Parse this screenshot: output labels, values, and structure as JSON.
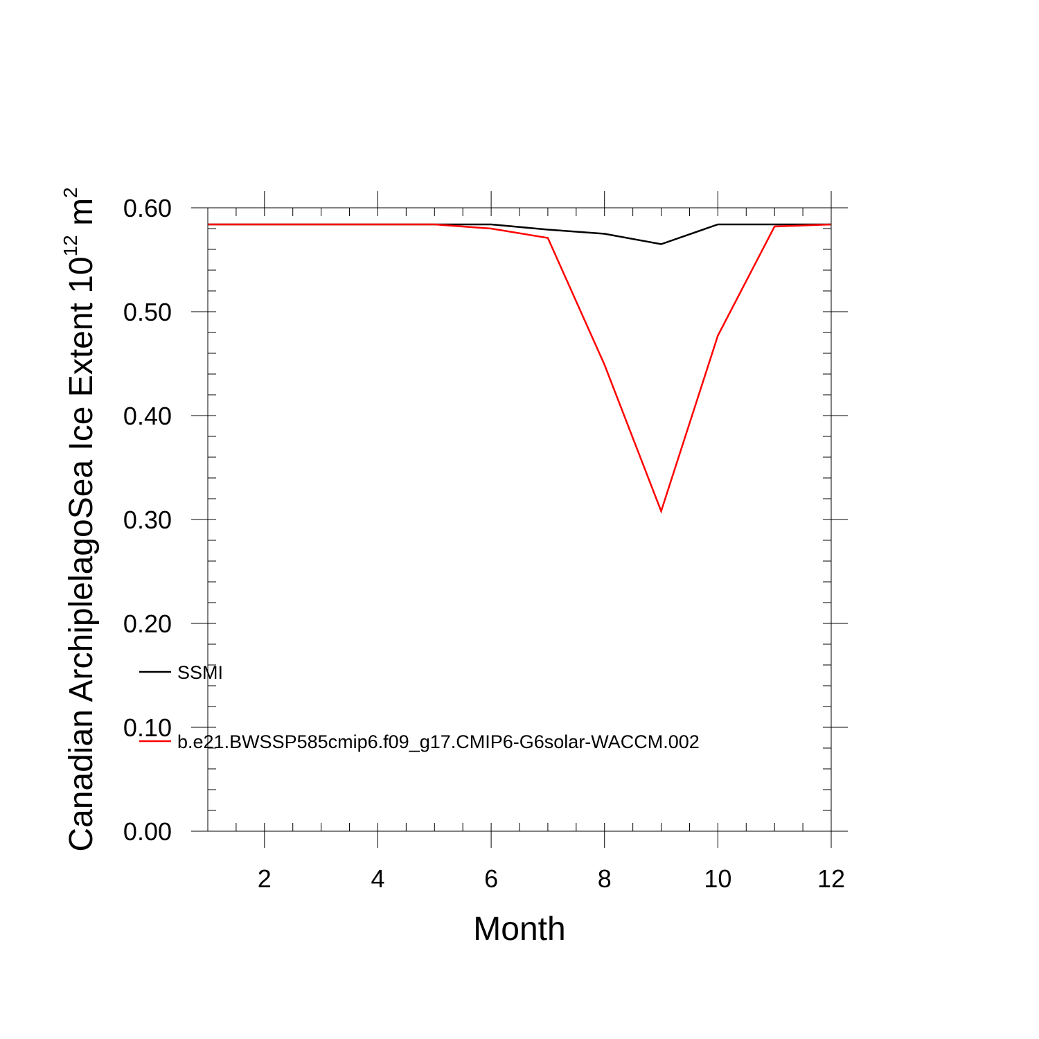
{
  "chart_data": {
    "type": "line",
    "title": "",
    "xlabel": "Month",
    "ylabel": "Canadian ArchiplelagoSea Ice Extent 10",
    "ylabel_sup1": "12",
    "ylabel_mid": " m",
    "ylabel_sup2": "2",
    "xlim": [
      1,
      12
    ],
    "ylim": [
      0.0,
      0.6
    ],
    "xticks": [
      2,
      4,
      6,
      8,
      10,
      12
    ],
    "xtick_labels": [
      "2",
      "4",
      "6",
      "8",
      "10",
      "12"
    ],
    "yticks": [
      0.0,
      0.1,
      0.2,
      0.3,
      0.4,
      0.5,
      0.6
    ],
    "ytick_labels": [
      "0.00",
      "0.10",
      "0.20",
      "0.30",
      "0.40",
      "0.50",
      "0.60"
    ],
    "grid": false,
    "legend_position": "bottom-left",
    "x": [
      1,
      2,
      3,
      4,
      5,
      6,
      7,
      8,
      9,
      10,
      11,
      12
    ],
    "series": [
      {
        "name": "SSMI",
        "color": "#000000",
        "values": [
          0.584,
          0.584,
          0.584,
          0.584,
          0.584,
          0.584,
          0.579,
          0.575,
          0.565,
          0.584,
          0.584,
          0.584
        ]
      },
      {
        "name": "b.e21.BWSSP585cmip6.f09_g17.CMIP6-G6solar-WACCM.002",
        "color": "#ff0000",
        "values": [
          0.584,
          0.584,
          0.584,
          0.584,
          0.584,
          0.58,
          0.571,
          0.449,
          0.308,
          0.477,
          0.582,
          0.584
        ]
      }
    ]
  }
}
